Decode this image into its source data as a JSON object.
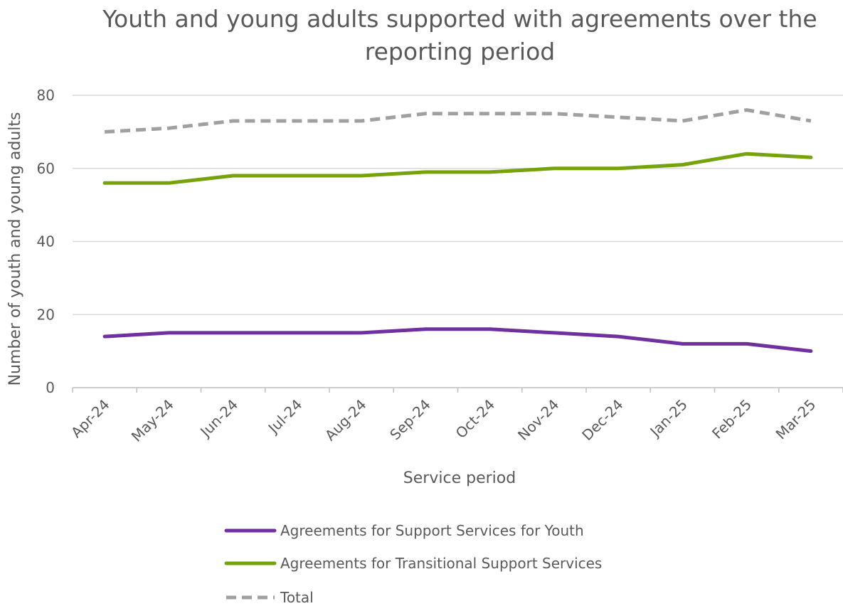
{
  "chart_data": {
    "type": "line",
    "title": "Youth and young adults supported with agreements over the reporting period",
    "xlabel": "Service period",
    "ylabel": "Number of youth and young adults",
    "ylim": [
      0,
      80
    ],
    "yticks": [
      0,
      20,
      40,
      60,
      80
    ],
    "grid": true,
    "legend_position": "bottom",
    "categories": [
      "Apr-24",
      "May-24",
      "Jun-24",
      "Jul-24",
      "Aug-24",
      "Sep-24",
      "Oct-24",
      "Nov-24",
      "Dec-24",
      "Jan-25",
      "Feb-25",
      "Mar-25"
    ],
    "series": [
      {
        "name": "Agreements for Support Services for Youth",
        "color": "#7030a0",
        "dash": false,
        "values": [
          14,
          15,
          15,
          15,
          15,
          16,
          16,
          15,
          14,
          12,
          12,
          10
        ]
      },
      {
        "name": "Agreements for Transitional Support Services",
        "color": "#76a20a",
        "dash": false,
        "values": [
          56,
          56,
          58,
          58,
          58,
          59,
          59,
          60,
          60,
          61,
          64,
          63
        ]
      },
      {
        "name": "Total",
        "color": "#a0a0a0",
        "dash": true,
        "values": [
          70,
          71,
          73,
          73,
          73,
          75,
          75,
          75,
          74,
          73,
          76,
          73
        ]
      }
    ]
  }
}
